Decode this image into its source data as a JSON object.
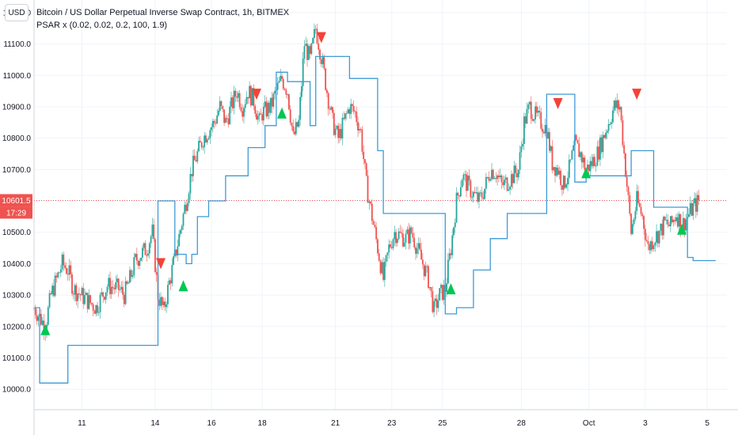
{
  "header": {
    "title": "Bitcoin / US Dollar Perpetual Inverse Swap Contract, 1h, BITMEX",
    "indicator": "PSAR x (0.02, 0.02, 0.2, 100, 1.9)",
    "currency_button": "USD"
  },
  "colors": {
    "up": "#26a69a",
    "down": "#ef5350",
    "psar": "#3d9bd6",
    "buy_marker": "#00c853",
    "sell_marker": "#f44336",
    "price_line": "#ef5350",
    "grid": "#f0f3fa"
  },
  "chart_data": {
    "type": "line",
    "y_axis": {
      "ylim": [
        9935,
        11240
      ],
      "ticks": [
        "11200.0",
        "11100.0",
        "11000.0",
        "10900.0",
        "10800.0",
        "10700.0",
        "10600.0",
        "10500.0",
        "10400.0",
        "10300.0",
        "10200.0",
        "10100.0",
        "10000.0"
      ]
    },
    "x_axis": {
      "ticks": [
        "11",
        "14",
        "16",
        "18",
        "21",
        "23",
        "25",
        "28",
        "Oct",
        "3",
        "5"
      ],
      "tick_positions": [
        8.5,
        21.5,
        31.5,
        40.5,
        53.5,
        63.5,
        72.5,
        86.5,
        98.5,
        108.5,
        119.5
      ],
      "xlim": [
        0,
        123
      ]
    },
    "current_price": {
      "value": 10601.5,
      "label": "10601.5",
      "countdown": "17:29"
    },
    "price_path": [
      [
        0,
        10260
      ],
      [
        2,
        10200
      ],
      [
        3,
        10300
      ],
      [
        5,
        10400
      ],
      [
        6,
        10380
      ],
      [
        7,
        10320
      ],
      [
        9,
        10290
      ],
      [
        11,
        10260
      ],
      [
        13,
        10330
      ],
      [
        15,
        10320
      ],
      [
        16,
        10300
      ],
      [
        17,
        10350
      ],
      [
        18,
        10410
      ],
      [
        19,
        10430
      ],
      [
        20,
        10450
      ],
      [
        21,
        10500
      ],
      [
        21.5,
        10400
      ],
      [
        22,
        10300
      ],
      [
        23,
        10250
      ],
      [
        24,
        10340
      ],
      [
        25,
        10420
      ],
      [
        26,
        10510
      ],
      [
        27,
        10600
      ],
      [
        28,
        10700
      ],
      [
        30,
        10800
      ],
      [
        32,
        10850
      ],
      [
        33,
        10900
      ],
      [
        34,
        10850
      ],
      [
        36,
        10950
      ],
      [
        37,
        10900
      ],
      [
        38,
        10950
      ],
      [
        39,
        10920
      ],
      [
        40,
        10850
      ],
      [
        40.5,
        10880
      ],
      [
        42,
        10900
      ],
      [
        43,
        10950
      ],
      [
        44,
        10990
      ],
      [
        45,
        10950
      ],
      [
        46,
        10800
      ],
      [
        47,
        10850
      ],
      [
        48,
        11100
      ],
      [
        49,
        11050
      ],
      [
        50,
        11150
      ],
      [
        51,
        11060
      ],
      [
        52,
        10950
      ],
      [
        53,
        10850
      ],
      [
        54,
        10800
      ],
      [
        55,
        10850
      ],
      [
        56,
        10900
      ],
      [
        57,
        10880
      ],
      [
        58,
        10820
      ],
      [
        59,
        10650
      ],
      [
        60,
        10550
      ],
      [
        61,
        10450
      ],
      [
        62,
        10350
      ],
      [
        63,
        10450
      ],
      [
        64,
        10500
      ],
      [
        66,
        10480
      ],
      [
        67,
        10500
      ],
      [
        68,
        10450
      ],
      [
        69,
        10400
      ],
      [
        70,
        10350
      ],
      [
        71,
        10250
      ],
      [
        72,
        10300
      ],
      [
        73,
        10320
      ],
      [
        74,
        10450
      ],
      [
        75,
        10600
      ],
      [
        76,
        10680
      ],
      [
        77,
        10650
      ],
      [
        78,
        10620
      ],
      [
        79,
        10600
      ],
      [
        80,
        10640
      ],
      [
        81,
        10700
      ],
      [
        82,
        10690
      ],
      [
        83,
        10650
      ],
      [
        84,
        10660
      ],
      [
        85,
        10680
      ],
      [
        86,
        10700
      ],
      [
        87,
        10850
      ],
      [
        88,
        10900
      ],
      [
        89,
        10870
      ],
      [
        90,
        10850
      ],
      [
        91,
        10830
      ],
      [
        92,
        10720
      ],
      [
        93,
        10700
      ],
      [
        94,
        10650
      ],
      [
        95,
        10700
      ],
      [
        96,
        10780
      ],
      [
        97,
        10750
      ],
      [
        98,
        10700
      ],
      [
        99,
        10720
      ],
      [
        100,
        10750
      ],
      [
        101,
        10800
      ],
      [
        102,
        10850
      ],
      [
        103,
        10900
      ],
      [
        104,
        10900
      ],
      [
        105,
        10700
      ],
      [
        106,
        10500
      ],
      [
        107,
        10600
      ],
      [
        108,
        10550
      ],
      [
        109,
        10450
      ],
      [
        110,
        10480
      ],
      [
        111,
        10500
      ],
      [
        112,
        10530
      ],
      [
        113,
        10520
      ],
      [
        114,
        10560
      ],
      [
        115,
        10520
      ],
      [
        116,
        10550
      ],
      [
        117,
        10580
      ],
      [
        118,
        10600
      ]
    ],
    "psar_path": [
      [
        0,
        10250
      ],
      [
        0,
        10260
      ],
      [
        1,
        10260
      ],
      [
        1,
        10020
      ],
      [
        6,
        10020
      ],
      [
        6,
        10140
      ],
      [
        22,
        10140
      ],
      [
        22,
        10600
      ],
      [
        25,
        10600
      ],
      [
        25,
        10430
      ],
      [
        27,
        10430
      ],
      [
        27,
        10400
      ],
      [
        28,
        10400
      ],
      [
        28,
        10430
      ],
      [
        29,
        10430
      ],
      [
        29,
        10550
      ],
      [
        31,
        10550
      ],
      [
        31,
        10600
      ],
      [
        34,
        10600
      ],
      [
        34,
        10680
      ],
      [
        38,
        10680
      ],
      [
        38,
        10770
      ],
      [
        41,
        10770
      ],
      [
        41,
        10840
      ],
      [
        43,
        10840
      ],
      [
        43,
        11010
      ],
      [
        45,
        11010
      ],
      [
        45,
        10980
      ],
      [
        49,
        10980
      ],
      [
        49,
        10840
      ],
      [
        50,
        10840
      ],
      [
        50,
        11060
      ],
      [
        56,
        11060
      ],
      [
        56,
        10990
      ],
      [
        61,
        10990
      ],
      [
        61,
        10760
      ],
      [
        62,
        10760
      ],
      [
        62,
        10560
      ],
      [
        73,
        10560
      ],
      [
        73,
        10240
      ],
      [
        75,
        10240
      ],
      [
        75,
        10260
      ],
      [
        78,
        10260
      ],
      [
        78,
        10380
      ],
      [
        81,
        10380
      ],
      [
        81,
        10480
      ],
      [
        84,
        10480
      ],
      [
        84,
        10560
      ],
      [
        91,
        10560
      ],
      [
        91,
        10940
      ],
      [
        96,
        10940
      ],
      [
        96,
        10660
      ],
      [
        98,
        10660
      ],
      [
        98,
        10680
      ],
      [
        106,
        10680
      ],
      [
        106,
        10760
      ],
      [
        110,
        10760
      ],
      [
        110,
        10580
      ],
      [
        116,
        10580
      ],
      [
        116,
        10420
      ],
      [
        117,
        10420
      ],
      [
        117,
        10410
      ],
      [
        121,
        10410
      ]
    ],
    "candle_range": [
      0,
      118
    ],
    "volatility": 40,
    "wick_extra": 15,
    "signals": [
      {
        "type": "buy",
        "x": 2,
        "price": 10190
      },
      {
        "type": "sell",
        "x": 22.5,
        "price": 10400
      },
      {
        "type": "buy",
        "x": 26.5,
        "price": 10330
      },
      {
        "type": "sell",
        "x": 39.5,
        "price": 10940
      },
      {
        "type": "buy",
        "x": 44,
        "price": 10880
      },
      {
        "type": "sell",
        "x": 51,
        "price": 11120
      },
      {
        "type": "buy",
        "x": 74,
        "price": 10320
      },
      {
        "type": "sell",
        "x": 93,
        "price": 10910
      },
      {
        "type": "buy",
        "x": 98,
        "price": 10690
      },
      {
        "type": "sell",
        "x": 107,
        "price": 10940
      },
      {
        "type": "buy",
        "x": 115,
        "price": 10510
      }
    ],
    "grid": true,
    "legend": "none"
  }
}
